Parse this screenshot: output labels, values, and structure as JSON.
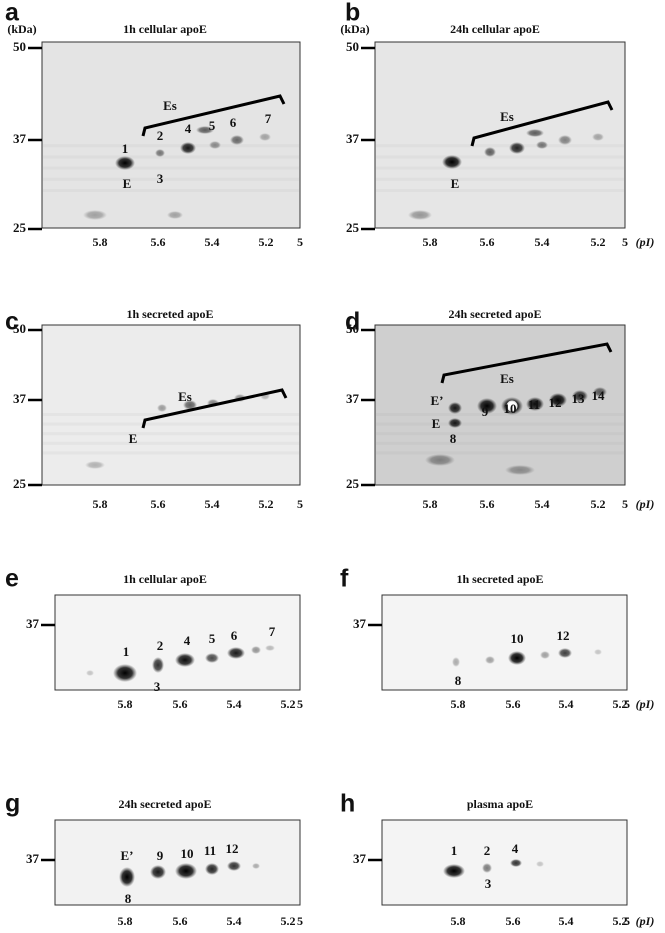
{
  "panels": [
    {
      "letter": "a",
      "title": "1h cellular apoE",
      "y_unit": "(kDa)",
      "yticks": [
        "50",
        "37",
        "25"
      ],
      "xticks": [
        "5.8",
        "5.6",
        "5.4",
        "5.2",
        "5"
      ],
      "labels": [
        "1",
        "E",
        "2",
        "3",
        "4",
        "5",
        "6",
        "7",
        "Es"
      ]
    },
    {
      "letter": "b",
      "title": "24h cellular apoE",
      "y_unit": "(kDa)",
      "yticks": [
        "50",
        "37",
        "25"
      ],
      "xticks": [
        "5.8",
        "5.6",
        "5.4",
        "5.2",
        "5"
      ],
      "x_unit": "(pI)",
      "labels": [
        "E",
        "Es"
      ]
    },
    {
      "letter": "c",
      "title": "1h secreted apoE",
      "yticks": [
        "50",
        "37",
        "25"
      ],
      "xticks": [
        "5.8",
        "5.6",
        "5.4",
        "5.2",
        "5"
      ],
      "labels": [
        "E",
        "Es"
      ]
    },
    {
      "letter": "d",
      "title": "24h secreted apoE",
      "yticks": [
        "50",
        "37",
        "25"
      ],
      "xticks": [
        "5.8",
        "5.6",
        "5.4",
        "5.2",
        "5"
      ],
      "x_unit": "(pI)",
      "labels": [
        "E’",
        "E",
        "8",
        "9",
        "10",
        "11",
        "12",
        "13",
        "14",
        "Es"
      ]
    },
    {
      "letter": "e",
      "title": "1h cellular apoE",
      "yticks": [
        "37"
      ],
      "xticks": [
        "5.8",
        "5.6",
        "5.4",
        "5.2",
        "5"
      ],
      "labels": [
        "1",
        "2",
        "3",
        "4",
        "5",
        "6",
        "7"
      ]
    },
    {
      "letter": "f",
      "title": "1h secreted apoE",
      "yticks": [
        "37"
      ],
      "xticks": [
        "5.8",
        "5.6",
        "5.4",
        "5.2",
        "5"
      ],
      "x_unit": "(pI)",
      "labels": [
        "10",
        "12",
        "8"
      ]
    },
    {
      "letter": "g",
      "title": "24h secreted apoE",
      "yticks": [
        "37"
      ],
      "xticks": [
        "5.8",
        "5.6",
        "5.4",
        "5.2",
        "5"
      ],
      "labels": [
        "E’",
        "8",
        "9",
        "10",
        "11",
        "12"
      ]
    },
    {
      "letter": "h",
      "title": "plasma apoE",
      "yticks": [
        "37"
      ],
      "xticks": [
        "5.8",
        "5.6",
        "5.4",
        "5.2",
        "5"
      ],
      "x_unit": "(pI)",
      "labels": [
        "1",
        "2",
        "3",
        "4"
      ]
    }
  ]
}
